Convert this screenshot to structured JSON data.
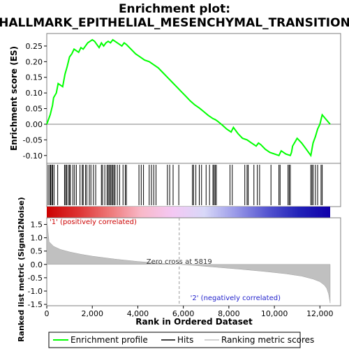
{
  "chart_data": {
    "type": "line",
    "title_line1": "Enrichment plot:",
    "title_line2": "HALLMARK_EPITHELIAL_MESENCHYMAL_TRANSITION",
    "es_panel": {
      "ylabel": "Enrichment score (ES)",
      "ylim": [
        -0.125,
        0.29
      ],
      "yticks": [
        -0.1,
        -0.05,
        0.0,
        0.05,
        0.1,
        0.15,
        0.2,
        0.25
      ],
      "ytick_labels": [
        "-0.10",
        "-0.05",
        "0.00",
        "0.05",
        "0.10",
        "0.15",
        "0.20",
        "0.25"
      ],
      "line_color": "#00ff00",
      "x": [
        0,
        150,
        250,
        300,
        420,
        500,
        700,
        800,
        900,
        1000,
        1100,
        1200,
        1400,
        1500,
        1600,
        1700,
        1800,
        1900,
        2000,
        2100,
        2200,
        2300,
        2400,
        2500,
        2600,
        2700,
        2800,
        2900,
        3000,
        3100,
        3200,
        3300,
        3400,
        3500,
        3700,
        3900,
        4100,
        4300,
        4500,
        4700,
        4900,
        5100,
        5300,
        5500,
        5700,
        5900,
        6100,
        6300,
        6500,
        6700,
        6900,
        7100,
        7300,
        7400,
        7500,
        7700,
        7900,
        8100,
        8200,
        8400,
        8600,
        8800,
        9000,
        9200,
        9300,
        9400,
        9600,
        9800,
        10000,
        10200,
        10300,
        10500,
        10700,
        10750,
        10800,
        11000,
        11200,
        11400,
        11600,
        11700,
        11800,
        11900,
        12000,
        12100,
        12450
      ],
      "y": [
        0.0,
        0.03,
        0.06,
        0.085,
        0.1,
        0.13,
        0.12,
        0.16,
        0.185,
        0.215,
        0.225,
        0.24,
        0.23,
        0.245,
        0.24,
        0.25,
        0.26,
        0.265,
        0.27,
        0.265,
        0.255,
        0.245,
        0.26,
        0.25,
        0.26,
        0.265,
        0.26,
        0.27,
        0.265,
        0.26,
        0.255,
        0.25,
        0.26,
        0.255,
        0.24,
        0.225,
        0.215,
        0.205,
        0.2,
        0.19,
        0.18,
        0.165,
        0.15,
        0.135,
        0.12,
        0.105,
        0.09,
        0.075,
        0.062,
        0.052,
        0.04,
        0.028,
        0.018,
        0.015,
        0.01,
        -0.002,
        -0.015,
        -0.025,
        -0.01,
        -0.03,
        -0.045,
        -0.05,
        -0.06,
        -0.07,
        -0.06,
        -0.065,
        -0.08,
        -0.09,
        -0.095,
        -0.1,
        -0.085,
        -0.095,
        -0.1,
        -0.09,
        -0.07,
        -0.045,
        -0.06,
        -0.08,
        -0.1,
        -0.06,
        -0.04,
        -0.015,
        0.0,
        0.03,
        0.0
      ]
    },
    "hits_panel": {
      "hit_positions": [
        60,
        130,
        170,
        220,
        260,
        320,
        480,
        780,
        830,
        870,
        940,
        1000,
        1040,
        1150,
        1220,
        1300,
        1460,
        1560,
        1600,
        1700,
        1760,
        1870,
        1940,
        2050,
        2150,
        2400,
        2450,
        2550,
        2650,
        2700,
        2750,
        2800,
        2850,
        2900,
        2950,
        3000,
        3100,
        3200,
        3350,
        3450,
        3500,
        4050,
        4150,
        4250,
        4500,
        4600,
        4700,
        4800,
        5300,
        5400,
        5550,
        5800,
        6400,
        6450,
        6550,
        6700,
        6800,
        7000,
        7150,
        7300,
        7350,
        7400,
        7450,
        8050,
        8150,
        8700,
        8800,
        8850,
        9100,
        9250,
        9350,
        9850,
        10200,
        10250,
        10600,
        10650,
        10700,
        11600,
        11650,
        11700,
        11800,
        11900,
        12050,
        12100
      ]
    },
    "ranking_panel": {
      "ylabel": "Ranked list metric (Signal2Noise)",
      "xlabel": "Rank in Ordered Dataset",
      "ylim": [
        -1.55,
        1.75
      ],
      "yticks": [
        -1.5,
        -1.0,
        -0.5,
        0.0,
        0.5,
        1.0,
        1.5
      ],
      "ytick_labels": [
        "-1.5",
        "-1.0",
        "-0.5",
        "0.0",
        "0.5",
        "1.0",
        "1.5"
      ],
      "xlim": [
        0,
        12450
      ],
      "xticks": [
        0,
        2000,
        4000,
        6000,
        8000,
        10000,
        12000
      ],
      "xtick_labels": [
        "0",
        "2,000",
        "4,000",
        "6,000",
        "8,000",
        "10,000",
        "12,000"
      ],
      "x": [
        0,
        100,
        300,
        600,
        1000,
        1500,
        2000,
        3000,
        4000,
        5000,
        5819,
        6500,
        7500,
        8500,
        9500,
        10500,
        11200,
        11700,
        12000,
        12200,
        12300,
        12380,
        12450
      ],
      "y": [
        1.7,
        0.85,
        0.68,
        0.56,
        0.47,
        0.38,
        0.31,
        0.2,
        0.11,
        0.04,
        0.0,
        -0.04,
        -0.11,
        -0.18,
        -0.26,
        -0.35,
        -0.44,
        -0.55,
        -0.65,
        -0.78,
        -0.9,
        -1.1,
        -1.45
      ],
      "zero_cross_rank": 5819,
      "zero_cross_text": "Zero cross at 5819",
      "pos_label": "'1' (positively correlated)",
      "neg_label": "'2' (negatively correlated)"
    },
    "colorbar": {
      "stops": [
        "#cc0000",
        "#dd3333",
        "#ee7777",
        "#f8b8c8",
        "#f4c8f4",
        "#d8d8f8",
        "#9999e8",
        "#5555d0",
        "#2222b8",
        "#1100aa"
      ]
    },
    "legend": {
      "items": [
        "Enrichment profile",
        "Hits",
        "Ranking metric scores"
      ]
    }
  }
}
